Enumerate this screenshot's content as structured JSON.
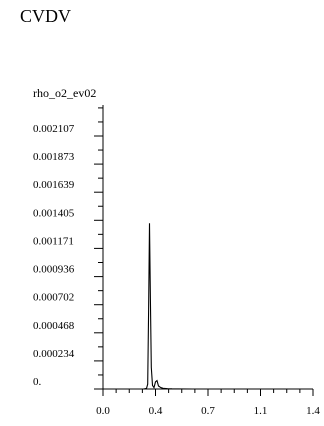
{
  "app": {
    "title": "CVDV"
  },
  "chart_data": {
    "type": "line",
    "title": "",
    "ylabel": "rho_o2_ev02",
    "xlabel": "",
    "x_tick_labels": [
      "0.0",
      "0.4",
      "0.7",
      "1.1",
      "1.4"
    ],
    "x_ticks": [
      0.0,
      0.35,
      0.7,
      1.05,
      1.4
    ],
    "y_tick_labels": [
      "0.",
      "0.000234",
      "0.000468",
      "0.000702",
      "0.000936",
      "0.001171",
      "0.001405",
      "0.001639",
      "0.001873",
      "0.002107"
    ],
    "y_ticks": [
      0.0,
      0.000234,
      0.000468,
      0.000702,
      0.000936,
      0.001171,
      0.001405,
      0.001639,
      0.001873,
      0.002107
    ],
    "xlim": [
      0.0,
      1.4
    ],
    "ylim": [
      0.0,
      0.00225
    ],
    "grid": false,
    "series": [
      {
        "x": [
          0.0,
          0.1,
          0.2,
          0.27,
          0.29,
          0.298,
          0.304,
          0.31,
          0.316,
          0.322,
          0.33,
          0.34,
          0.35,
          0.36,
          0.37,
          0.385,
          0.4,
          0.43,
          0.46,
          0.5,
          0.6,
          0.8,
          1.0,
          1.2,
          1.4
        ],
        "y": [
          0.0,
          0.0,
          0.0,
          0.0,
          5e-06,
          4e-05,
          0.00065,
          0.00138,
          0.00075,
          0.00018,
          3e-05,
          1.2e-05,
          6e-05,
          7e-05,
          2.5e-05,
          1.2e-05,
          6e-06,
          3e-06,
          1.5e-06,
          1e-06,
          0.0,
          0.0,
          0.0,
          0.0,
          0.0
        ],
        "color": "#000000"
      }
    ]
  }
}
